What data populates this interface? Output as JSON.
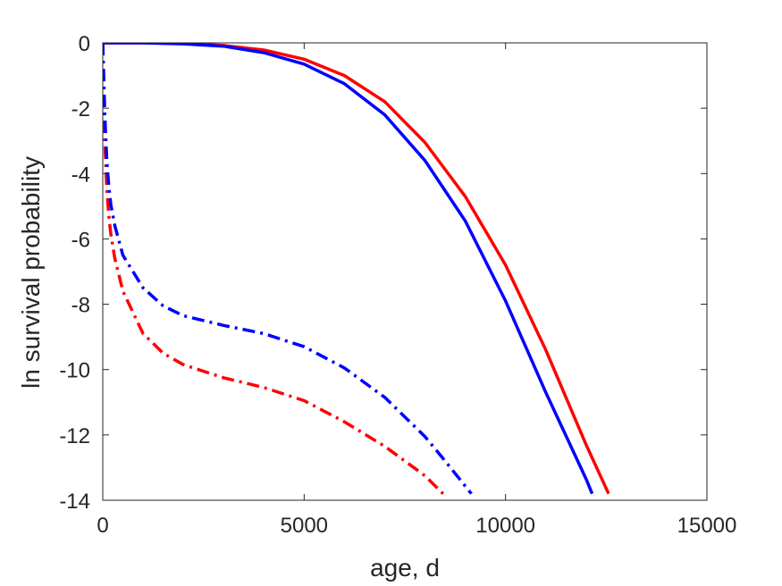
{
  "chart_data": {
    "type": "line",
    "title": "",
    "xlabel": "age, d",
    "ylabel": "ln survival probability",
    "xlim": [
      0,
      15000
    ],
    "ylim": [
      -14,
      0
    ],
    "xticks": [
      0,
      5000,
      10000,
      15000
    ],
    "yticks": [
      -14,
      -12,
      -10,
      -8,
      -6,
      -4,
      -2,
      0
    ],
    "grid": false,
    "box": true,
    "series": [
      {
        "color": "#ff0000",
        "style": "solid",
        "x": [
          0,
          1000,
          2000,
          3000,
          4000,
          5000,
          6000,
          7000,
          8000,
          9000,
          10000,
          11000,
          12000,
          12560
        ],
        "y": [
          0,
          0,
          -0.02,
          -0.08,
          -0.22,
          -0.5,
          -1.0,
          -1.8,
          -3.05,
          -4.7,
          -6.8,
          -9.4,
          -12.3,
          -13.8
        ]
      },
      {
        "color": "#0000ff",
        "style": "solid",
        "x": [
          0,
          1000,
          2000,
          3000,
          4000,
          5000,
          6000,
          7000,
          8000,
          9000,
          10000,
          11000,
          12000,
          12150
        ],
        "y": [
          0,
          0,
          -0.03,
          -0.1,
          -0.3,
          -0.65,
          -1.25,
          -2.2,
          -3.6,
          -5.45,
          -7.9,
          -10.7,
          -13.35,
          -13.8
        ]
      },
      {
        "color": "#ff0000",
        "style": "dash-dot",
        "x": [
          0,
          50,
          100,
          150,
          200,
          300,
          500,
          1000,
          1500,
          2000,
          3000,
          4000,
          5000,
          6000,
          7000,
          7500,
          8000,
          8450
        ],
        "y": [
          0,
          -3.0,
          -4.5,
          -5.3,
          -5.85,
          -6.6,
          -7.6,
          -8.9,
          -9.5,
          -9.85,
          -10.25,
          -10.55,
          -10.95,
          -11.6,
          -12.35,
          -12.8,
          -13.25,
          -13.8
        ]
      },
      {
        "color": "#0000ff",
        "style": "dash-dot",
        "x": [
          0,
          50,
          100,
          150,
          200,
          300,
          500,
          1000,
          1500,
          2000,
          3000,
          4000,
          5000,
          6000,
          7000,
          8000,
          8500,
          9150
        ],
        "y": [
          0,
          -2.2,
          -3.6,
          -4.4,
          -4.95,
          -5.6,
          -6.5,
          -7.5,
          -8.05,
          -8.35,
          -8.65,
          -8.9,
          -9.3,
          -9.95,
          -10.85,
          -12.05,
          -12.8,
          -13.8
        ]
      }
    ]
  }
}
